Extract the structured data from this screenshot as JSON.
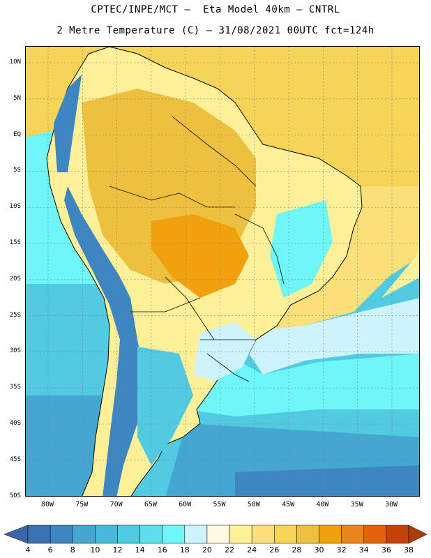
{
  "title": {
    "line1": "CPTEC/INPE/MCT –  Eta Model 40km – CNTRL",
    "line2": "2 Metre Temperature (C) – 31/08/2021 00UTC fct=124h"
  },
  "axes": {
    "lat_labels": [
      "10N",
      "5N",
      "EQ",
      "5S",
      "10S",
      "15S",
      "20S",
      "25S",
      "30S",
      "35S",
      "40S",
      "45S",
      "50S"
    ],
    "lon_labels": [
      "80W",
      "75W",
      "70W",
      "65W",
      "60W",
      "55W",
      "50W",
      "45W",
      "40W",
      "35W",
      "30W"
    ]
  },
  "colorbar": {
    "ticks": [
      "4",
      "6",
      "8",
      "10",
      "12",
      "14",
      "16",
      "18",
      "20",
      "22",
      "24",
      "26",
      "28",
      "30",
      "32",
      "34",
      "36",
      "38"
    ],
    "colors": [
      "#3a72b4",
      "#3d86c2",
      "#44a6d1",
      "#4ab7dc",
      "#52cbe2",
      "#5edded",
      "#6ef6f8",
      "#cdf3fc",
      "#fdf9e2",
      "#fdf099",
      "#fbe07a",
      "#f6d458",
      "#eec03f",
      "#f2a10e",
      "#ea861e",
      "#e1640d",
      "#c34206"
    ],
    "under_color": "#3c64a8",
    "over_color": "#ab3d0c"
  },
  "colors": {
    "ocean_tropical": "#f6d458",
    "ocean_warm": "#fbe07a",
    "ocean_mild": "#cdf3fc",
    "ocean_cool": "#6ef6f8",
    "ocean_cold": "#52cbe2",
    "ocean_colder": "#44a6d1",
    "andes": "#3d86c2",
    "amazon": "#eec03f",
    "hot_core": "#f2a10e",
    "coast_land": "#fdf099",
    "gridline": "#7f7f7f",
    "border": "#000000"
  }
}
